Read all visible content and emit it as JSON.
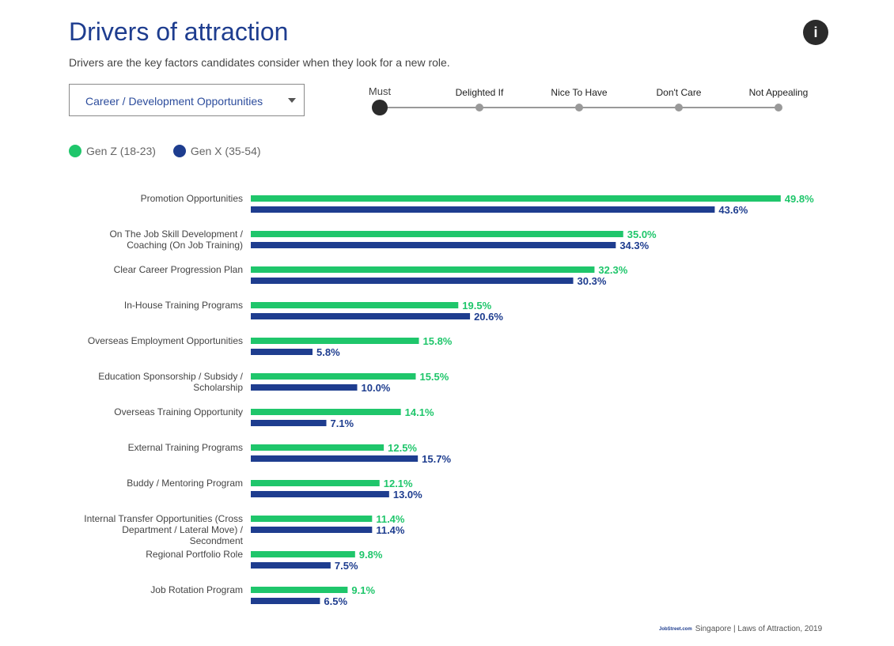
{
  "header": {
    "title": "Drivers of attraction",
    "subtitle": "Drivers are the key factors candidates consider when they look for a new role.",
    "info_icon": "i"
  },
  "dropdown": {
    "selected": "Career / Development Opportunities"
  },
  "scale": {
    "stops": [
      {
        "label": "Must",
        "active": true
      },
      {
        "label": "Delighted If",
        "active": false
      },
      {
        "label": "Nice To Have",
        "active": false
      },
      {
        "label": "Don't Care",
        "active": false
      },
      {
        "label": "Not Appealing",
        "active": false
      }
    ]
  },
  "legend": [
    {
      "label": "Gen Z (18-23)",
      "color": "#1fc66b"
    },
    {
      "label": "Gen X (35-54)",
      "color": "#1e3d8f"
    }
  ],
  "footer": {
    "brand": "JobStreet.com",
    "source": "Singapore | Laws of Attraction, 2019"
  },
  "chart_data": {
    "type": "bar",
    "orientation": "horizontal",
    "title": "Drivers of attraction",
    "xlabel": "",
    "ylabel": "",
    "xlim": [
      0,
      50
    ],
    "grid": false,
    "legend_position": "top-left",
    "value_suffix": "%",
    "categories": [
      "Promotion Opportunities",
      "On The Job Skill Development / Coaching (On Job Training)",
      "Clear Career Progression Plan",
      "In-House Training Programs",
      "Overseas Employment Opportunities",
      "Education Sponsorship / Subsidy / Scholarship",
      "Overseas Training Opportunity",
      "External Training Programs",
      "Buddy / Mentoring Program",
      "Internal Transfer Opportunities (Cross Department / Lateral Move) / Secondment",
      "Regional Portfolio Role",
      "Job Rotation Program"
    ],
    "category_lines": [
      [
        "Promotion Opportunities"
      ],
      [
        "On The Job Skill Development /",
        "Coaching (On Job Training)"
      ],
      [
        "Clear Career Progression Plan"
      ],
      [
        "In-House Training Programs"
      ],
      [
        "Overseas Employment Opportunities"
      ],
      [
        "Education Sponsorship / Subsidy /",
        "Scholarship"
      ],
      [
        "Overseas Training Opportunity"
      ],
      [
        "External Training Programs"
      ],
      [
        "Buddy / Mentoring Program"
      ],
      [
        "Internal Transfer Opportunities (Cross",
        "Department / Lateral Move) /",
        "Secondment"
      ],
      [
        "Regional Portfolio Role"
      ],
      [
        "Job Rotation Program"
      ]
    ],
    "series": [
      {
        "name": "Gen Z (18-23)",
        "color": "#1fc66b",
        "values": [
          49.8,
          35.0,
          32.3,
          19.5,
          15.8,
          15.5,
          14.1,
          12.5,
          12.1,
          11.4,
          9.8,
          9.1
        ]
      },
      {
        "name": "Gen X (35-54)",
        "color": "#1e3d8f",
        "values": [
          43.6,
          34.3,
          30.3,
          20.6,
          5.8,
          10.0,
          7.1,
          15.7,
          13.0,
          11.4,
          7.5,
          6.5
        ]
      }
    ]
  }
}
